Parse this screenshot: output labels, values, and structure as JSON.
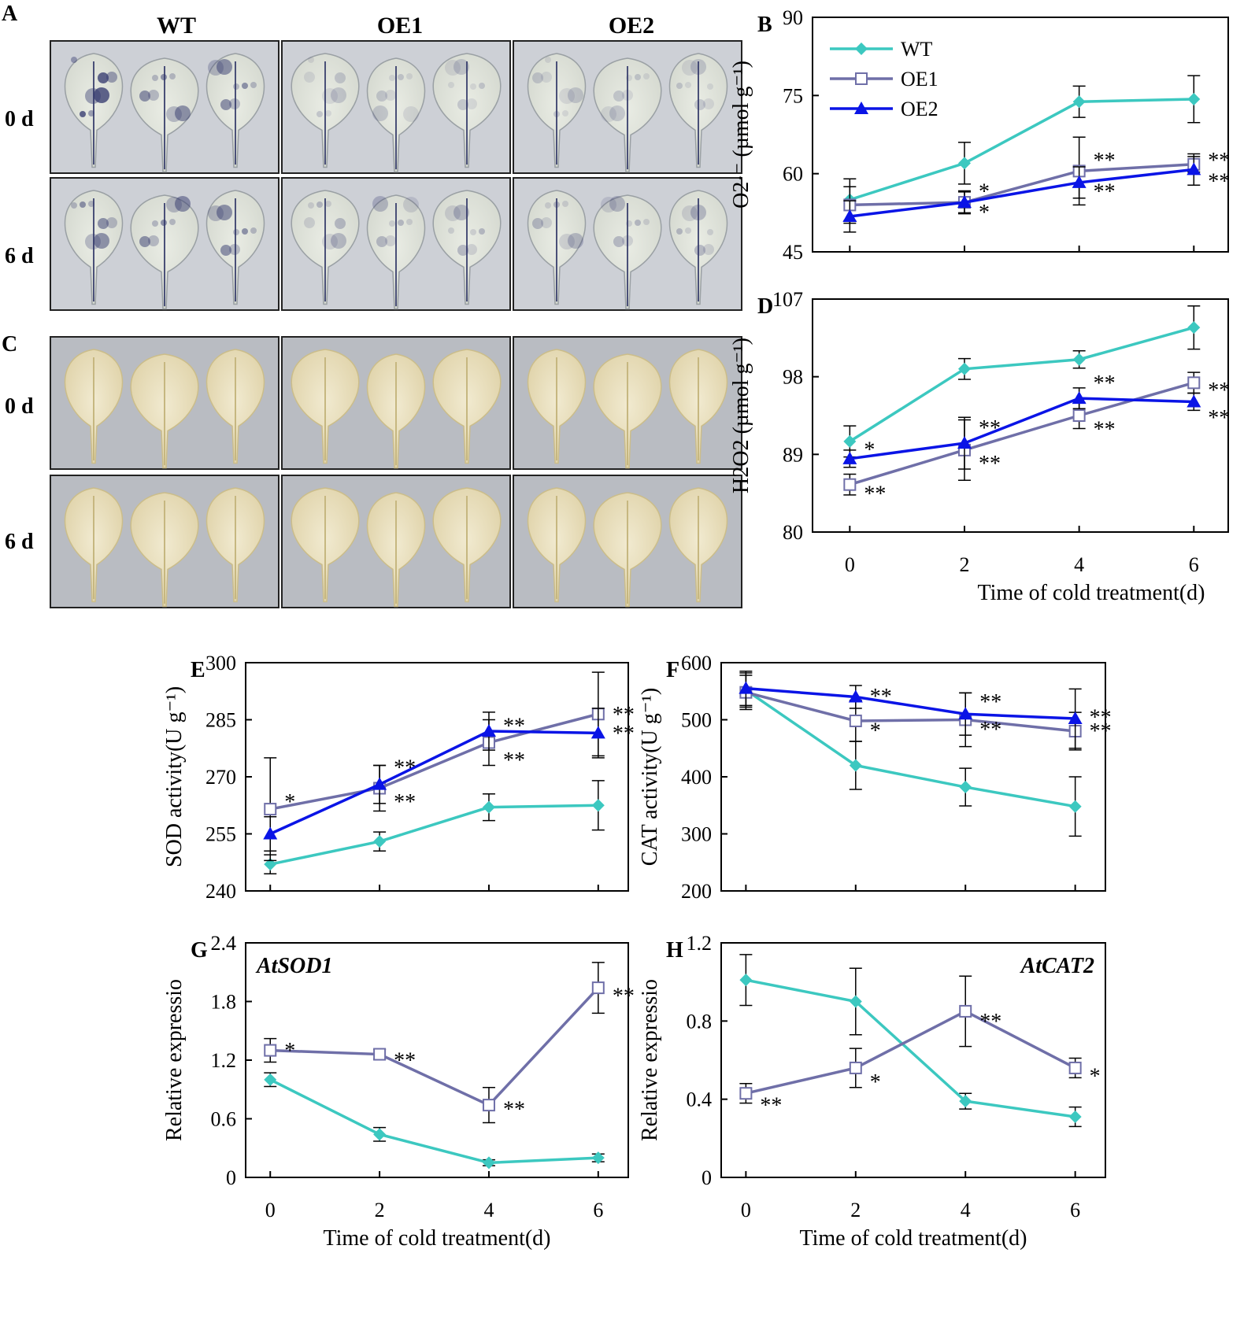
{
  "colors": {
    "WT": "#3cc8c0",
    "OE1": "#6f6fa8",
    "OE2": "#0a14e6"
  },
  "photo_panels": {
    "A": {
      "letter": "A",
      "columns": [
        "WT",
        "OE1",
        "OE2"
      ],
      "rows": [
        "0 d",
        "6 d"
      ]
    },
    "C": {
      "letter": "C",
      "rows": [
        "0 d",
        "6 d"
      ]
    }
  },
  "chart_data": [
    {
      "id": "B",
      "letter": "B",
      "type": "line",
      "ylabel": "O2·⁻ (µmol g⁻¹)",
      "xlabel": "Time of cold treatment(d)",
      "x": [
        0,
        2,
        4,
        6
      ],
      "ylim": [
        45,
        90
      ],
      "yticks": [
        45,
        60,
        75,
        90
      ],
      "legend": [
        "WT",
        "OE1",
        "OE2"
      ],
      "series": [
        {
          "name": "WT",
          "values": [
            55,
            62,
            73.8,
            74.3
          ],
          "errors": [
            4,
            4,
            3,
            4.5
          ]
        },
        {
          "name": "OE1",
          "values": [
            54,
            54.5,
            60.5,
            61.8
          ],
          "errors": [
            3.5,
            2,
            6.5,
            1.5
          ]
        },
        {
          "name": "OE2",
          "values": [
            51.8,
            54.5,
            58.3,
            60.8
          ],
          "errors": [
            3,
            2.2,
            3,
            3
          ]
        }
      ],
      "annotations": [
        {
          "text": "*",
          "x": 2,
          "y": 57,
          "series": "OE1"
        },
        {
          "text": "*",
          "x": 2,
          "y": 53,
          "series": "OE2"
        },
        {
          "text": "**",
          "x": 4,
          "y": 63,
          "series": "OE1"
        },
        {
          "text": "**",
          "x": 4,
          "y": 57,
          "series": "OE2"
        },
        {
          "text": "**",
          "x": 6,
          "y": 63,
          "series": "OE1"
        },
        {
          "text": "**",
          "x": 6,
          "y": 59,
          "series": "OE2"
        }
      ]
    },
    {
      "id": "D",
      "letter": "D",
      "type": "line",
      "ylabel": "H2O2 (µmol g⁻¹)",
      "xlabel": "Time of cold treatment(d)",
      "x": [
        0,
        2,
        4,
        6
      ],
      "ylim": [
        80,
        107
      ],
      "yticks": [
        80,
        89,
        98,
        107
      ],
      "xticks": [
        "0",
        "2",
        "4",
        "6"
      ],
      "series": [
        {
          "name": "WT",
          "values": [
            90.5,
            98.9,
            100,
            103.7
          ],
          "errors": [
            1.8,
            1.2,
            1,
            2.5
          ]
        },
        {
          "name": "OE1",
          "values": [
            85.5,
            89.5,
            93.5,
            97.3
          ],
          "errors": [
            1.2,
            3.5,
            1.5,
            1.2
          ]
        },
        {
          "name": "OE2",
          "values": [
            88.5,
            90.3,
            95.5,
            95.1
          ],
          "errors": [
            1,
            3,
            1.2,
            1
          ]
        }
      ],
      "annotations": [
        {
          "text": "*",
          "x": 0,
          "y": 89.8,
          "series": "WT"
        },
        {
          "text": "**",
          "x": 0,
          "y": 84.7,
          "series": "OE1"
        },
        {
          "text": "**",
          "x": 2,
          "y": 92.3,
          "series": "OE2"
        },
        {
          "text": "**",
          "x": 2,
          "y": 88.2,
          "series": "OE1"
        },
        {
          "text": "**",
          "x": 4,
          "y": 97.5,
          "series": "OE2"
        },
        {
          "text": "**",
          "x": 4,
          "y": 92.2,
          "series": "OE1"
        },
        {
          "text": "**",
          "x": 6,
          "y": 96.7,
          "series": "OE1"
        },
        {
          "text": "**",
          "x": 6,
          "y": 93.5,
          "series": "OE2"
        }
      ]
    },
    {
      "id": "E",
      "letter": "E",
      "type": "line",
      "ylabel": "SOD activity(U g⁻¹)",
      "xlabel": "",
      "x": [
        0,
        2,
        4,
        6
      ],
      "ylim": [
        240,
        300
      ],
      "yticks": [
        240,
        255,
        270,
        285,
        300
      ],
      "series": [
        {
          "name": "WT",
          "values": [
            247,
            253,
            262,
            262.5
          ],
          "errors": [
            2.5,
            2.5,
            3.5,
            6.5
          ]
        },
        {
          "name": "OE1",
          "values": [
            261.5,
            267,
            279,
            286.5
          ],
          "errors": [
            13.5,
            6,
            6,
            11
          ]
        },
        {
          "name": "OE2",
          "values": [
            255,
            268,
            282,
            281.5
          ],
          "errors": [
            4.5,
            5,
            5,
            6.5
          ]
        }
      ],
      "annotations": [
        {
          "text": "*",
          "x": 0,
          "y": 264,
          "series": "OE1"
        },
        {
          "text": "**",
          "x": 2,
          "y": 273,
          "series": "OE2"
        },
        {
          "text": "**",
          "x": 2,
          "y": 264,
          "series": "OE1"
        },
        {
          "text": "**",
          "x": 4,
          "y": 284,
          "series": "OE2"
        },
        {
          "text": "**",
          "x": 4,
          "y": 275,
          "series": "OE1"
        },
        {
          "text": "**",
          "x": 6,
          "y": 287,
          "series": "OE1"
        },
        {
          "text": "**",
          "x": 6,
          "y": 282,
          "series": "OE2"
        }
      ]
    },
    {
      "id": "F",
      "letter": "F",
      "type": "line",
      "ylabel": "CAT activity(U g⁻¹)",
      "xlabel": "",
      "x": [
        0,
        2,
        4,
        6
      ],
      "ylim": [
        200,
        600
      ],
      "yticks": [
        200,
        300,
        400,
        500,
        600
      ],
      "series": [
        {
          "name": "WT",
          "values": [
            552,
            420,
            382,
            348
          ],
          "errors": [
            30,
            42,
            33,
            52
          ]
        },
        {
          "name": "OE1",
          "values": [
            548,
            498,
            500,
            480
          ],
          "errors": [
            30,
            36,
            47,
            33
          ]
        },
        {
          "name": "OE2",
          "values": [
            555,
            540,
            510,
            502
          ],
          "errors": [
            30,
            20,
            37,
            52
          ]
        }
      ],
      "annotations": [
        {
          "text": "**",
          "x": 2,
          "y": 545,
          "series": "OE2"
        },
        {
          "text": "*",
          "x": 2,
          "y": 485,
          "series": "OE1"
        },
        {
          "text": "**",
          "x": 4,
          "y": 535,
          "series": "OE2"
        },
        {
          "text": "**",
          "x": 4,
          "y": 487,
          "series": "OE1"
        },
        {
          "text": "**",
          "x": 6,
          "y": 508,
          "series": "OE2"
        },
        {
          "text": "**",
          "x": 6,
          "y": 484,
          "series": "OE1"
        }
      ]
    },
    {
      "id": "G",
      "letter": "G",
      "type": "line",
      "ylabel": "Relative expressio",
      "xlabel": "Time of cold treatment(d)",
      "gene": "AtSOD1",
      "x": [
        0,
        2,
        4,
        6
      ],
      "ylim": [
        0,
        2.4
      ],
      "yticks": [
        0,
        0.6,
        1.2,
        1.8,
        2.4
      ],
      "xticks": [
        "0",
        "2",
        "4",
        "6"
      ],
      "series": [
        {
          "name": "WT",
          "values": [
            1.0,
            0.44,
            0.15,
            0.2
          ],
          "errors": [
            0.07,
            0.07,
            0.03,
            0.04
          ]
        },
        {
          "name": "OE1",
          "values": [
            1.3,
            1.26,
            0.74,
            1.94
          ],
          "errors": [
            0.12,
            0.05,
            0.18,
            0.26
          ]
        }
      ],
      "annotations": [
        {
          "text": "*",
          "x": 0,
          "y": 1.32,
          "series": "OE1"
        },
        {
          "text": "**",
          "x": 2,
          "y": 1.22,
          "series": "OE1"
        },
        {
          "text": "**",
          "x": 4,
          "y": 0.72,
          "series": "OE1"
        },
        {
          "text": "**",
          "x": 6,
          "y": 1.88,
          "series": "OE1"
        }
      ]
    },
    {
      "id": "H",
      "letter": "H",
      "type": "line",
      "ylabel": "Relative expressio",
      "xlabel": "Time of cold treatment(d)",
      "gene": "AtCAT2",
      "x": [
        0,
        2,
        4,
        6
      ],
      "ylim": [
        0,
        1.2
      ],
      "yticks": [
        0,
        0.4,
        0.8,
        1.2
      ],
      "xticks": [
        "0",
        "2",
        "4",
        "6"
      ],
      "series": [
        {
          "name": "WT",
          "values": [
            1.01,
            0.9,
            0.39,
            0.31
          ],
          "errors": [
            0.13,
            0.17,
            0.04,
            0.05
          ]
        },
        {
          "name": "OE1",
          "values": [
            0.43,
            0.56,
            0.85,
            0.56
          ],
          "errors": [
            0.05,
            0.1,
            0.18,
            0.05
          ]
        }
      ],
      "annotations": [
        {
          "text": "**",
          "x": 0,
          "y": 0.38,
          "series": "OE1"
        },
        {
          "text": "*",
          "x": 2,
          "y": 0.5,
          "series": "OE1"
        },
        {
          "text": "**",
          "x": 4,
          "y": 0.81,
          "series": "OE1"
        },
        {
          "text": "*",
          "x": 6,
          "y": 0.53,
          "series": "OE1"
        }
      ]
    }
  ]
}
